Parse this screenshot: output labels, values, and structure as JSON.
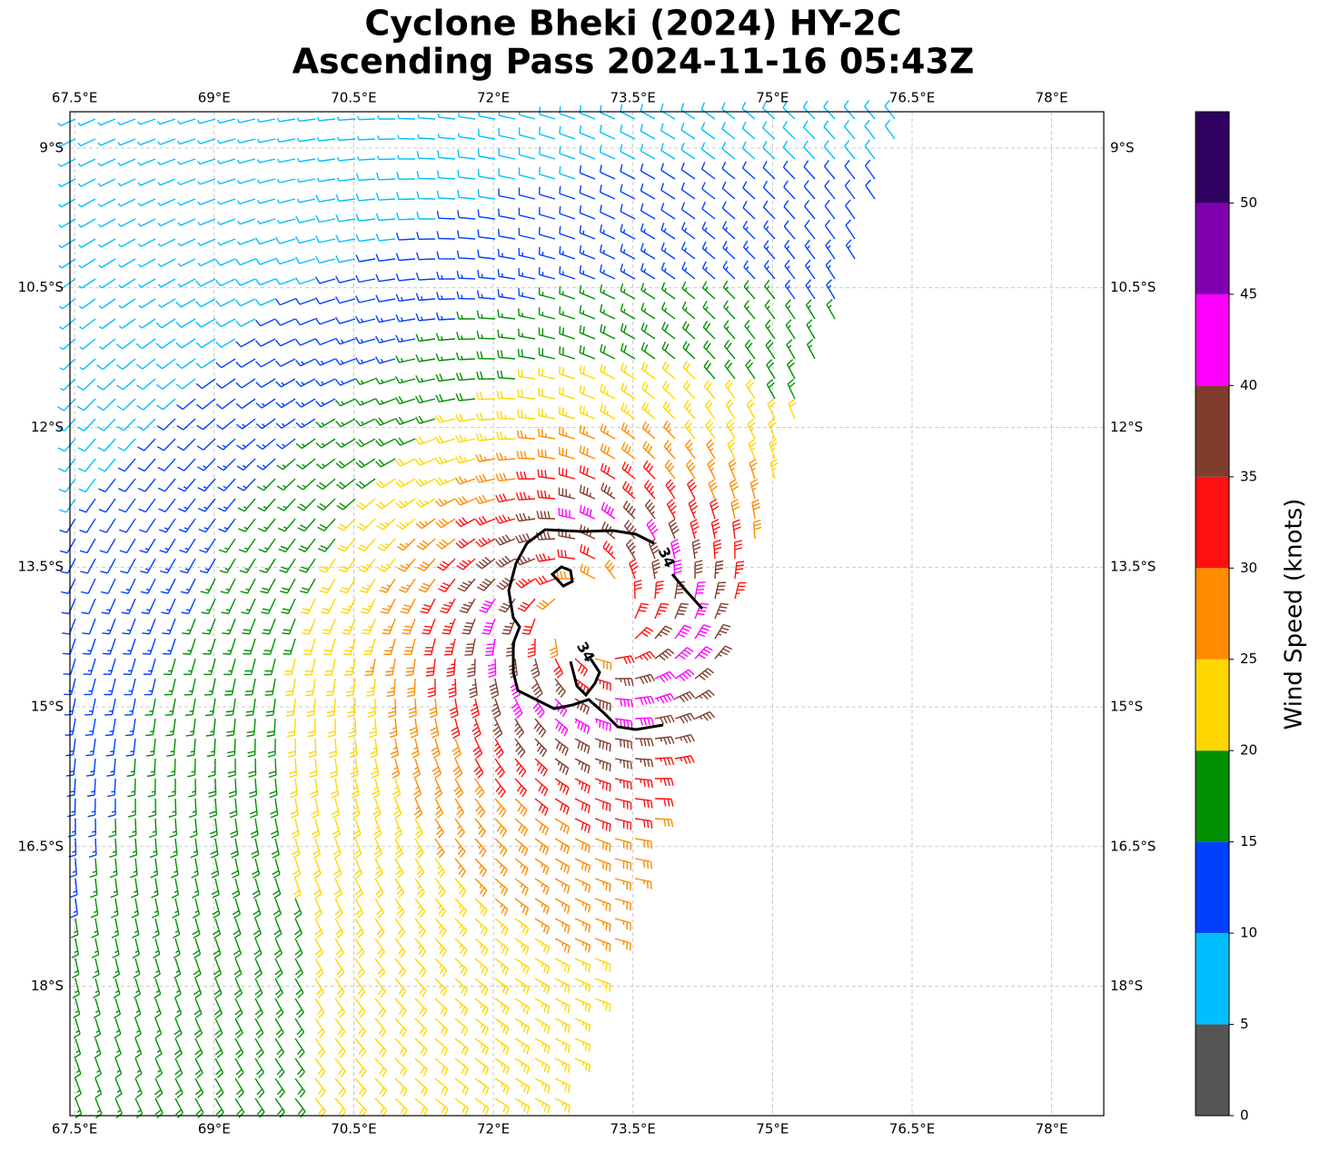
{
  "map": {
    "title": [
      "Cyclone Bheki (2024) HY-2C",
      "Ascending Pass 2024-11-16 05:43Z"
    ],
    "xlim": [
      67.45,
      78.56
    ],
    "ylim": [
      -19.39,
      -8.61
    ],
    "xticks": [
      {
        "value": 67.5,
        "label": "67.5°E"
      },
      {
        "value": 69,
        "label": "69°E"
      },
      {
        "value": 70.5,
        "label": "70.5°E"
      },
      {
        "value": 72,
        "label": "72°E"
      },
      {
        "value": 73.5,
        "label": "73.5°E"
      },
      {
        "value": 75,
        "label": "75°E"
      },
      {
        "value": 76.5,
        "label": "76.5°E"
      },
      {
        "value": 78,
        "label": "78°E"
      }
    ],
    "yticks": [
      {
        "value": -9,
        "label": "9°S"
      },
      {
        "value": -10.5,
        "label": "10.5°S"
      },
      {
        "value": -12,
        "label": "12°S"
      },
      {
        "value": -13.5,
        "label": "13.5°S"
      },
      {
        "value": -15,
        "label": "15°S"
      },
      {
        "value": -16.5,
        "label": "16.5°S"
      },
      {
        "value": -18,
        "label": "18°S"
      }
    ],
    "grid": true,
    "contour": {
      "level": 34
    },
    "colorbar": {
      "label": "Wind Speed (knots)",
      "lim": [
        0,
        55
      ],
      "ticks": [
        0,
        5,
        10,
        15,
        20,
        25,
        30,
        35,
        40,
        45,
        50
      ],
      "bounds": [
        0,
        5,
        10,
        15,
        20,
        25,
        30,
        35,
        40,
        45,
        50,
        55
      ],
      "colors": [
        "#555555",
        "#00bfff",
        "#0040ff",
        "#009000",
        "#ffd700",
        "#ff8c00",
        "#ff1010",
        "#803c2c",
        "#ff00ff",
        "#8000b0",
        "#300060"
      ]
    }
  }
}
